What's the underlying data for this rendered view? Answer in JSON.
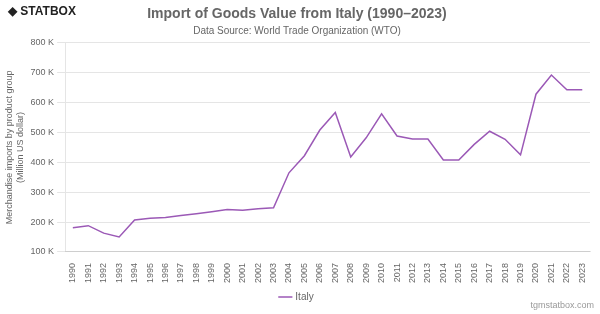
{
  "chart_data": {
    "type": "line",
    "title": "Import of Goods Value from Italy (1990–2023)",
    "subtitle": "Data Source: World Trade Organization (WTO)",
    "ylabel": "Merchandise imports by product group (Million US dollar)",
    "annotations": [
      "◆ STATBOX",
      "tgmstatbox.com"
    ],
    "x": [
      1990,
      1991,
      1992,
      1993,
      1994,
      1995,
      1996,
      1997,
      1998,
      1999,
      2000,
      2001,
      2002,
      2003,
      2004,
      2005,
      2006,
      2007,
      2008,
      2009,
      2010,
      2011,
      2012,
      2013,
      2014,
      2015,
      2016,
      2017,
      2018,
      2019,
      2020,
      2021,
      2022,
      2023
    ],
    "series": [
      {
        "name": "Italy",
        "color": "#9b59b6",
        "values": [
          181000,
          188000,
          163000,
          150000,
          207000,
          213000,
          215000,
          222000,
          228000,
          235000,
          242000,
          240000,
          245000,
          248000,
          365000,
          422000,
          508000,
          567000,
          418000,
          482000,
          562000,
          488000,
          478000,
          478000,
          408000,
          408000,
          460000,
          504000,
          477000,
          425000,
          628000,
          692000,
          643000,
          643000
        ]
      }
    ],
    "xlim": [
      1989.5,
      2023.5
    ],
    "xticks": [
      1990,
      1991,
      1992,
      1993,
      1994,
      1995,
      1996,
      1997,
      1998,
      1999,
      2000,
      2001,
      2002,
      2003,
      2004,
      2005,
      2006,
      2007,
      2008,
      2009,
      2010,
      2011,
      2012,
      2013,
      2014,
      2015,
      2016,
      2017,
      2018,
      2019,
      2020,
      2021,
      2022,
      2023
    ],
    "ylim": [
      100000,
      800000
    ],
    "yticks": [
      {
        "value": 100000,
        "label": "100 K"
      },
      {
        "value": 200000,
        "label": "200 K"
      },
      {
        "value": 300000,
        "label": "300 K"
      },
      {
        "value": 400000,
        "label": "400 K"
      },
      {
        "value": 500000,
        "label": "500 K"
      },
      {
        "value": 600000,
        "label": "600 K"
      },
      {
        "value": 700000,
        "label": "700 K"
      },
      {
        "value": 800000,
        "label": "800 K"
      }
    ],
    "grid": "y",
    "legend": "bottom"
  }
}
